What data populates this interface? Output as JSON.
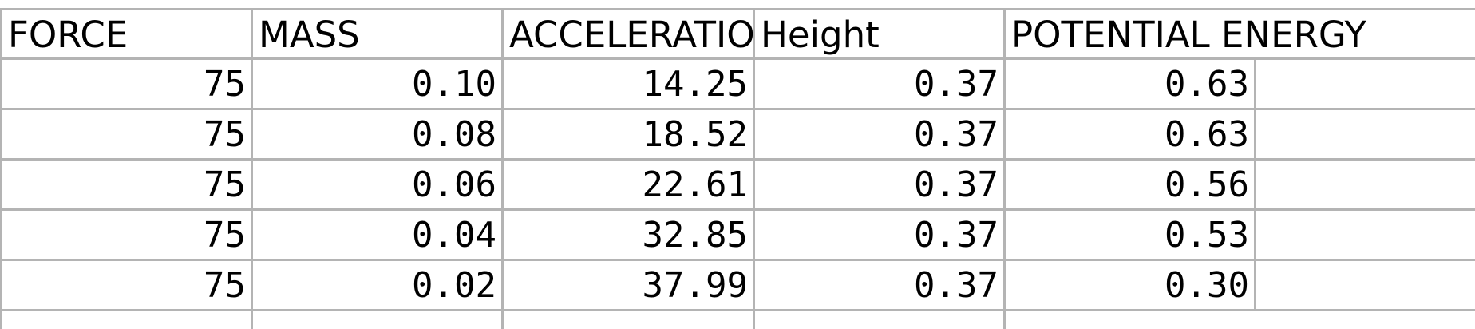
{
  "table": {
    "headers": [
      "FORCE",
      "MASS",
      "ACCELERATION",
      "Height",
      "POTENTIAL ENERGY"
    ],
    "rows": [
      [
        "75",
        "0.10",
        "14.25",
        "0.37",
        "0.63"
      ],
      [
        "75",
        "0.08",
        "18.52",
        "0.37",
        "0.63"
      ],
      [
        "75",
        "0.06",
        "22.61",
        "0.37",
        "0.56"
      ],
      [
        "75",
        "0.04",
        "32.85",
        "0.37",
        "0.53"
      ],
      [
        "75",
        "0.02",
        "37.99",
        "0.37",
        "0.30"
      ]
    ]
  },
  "colors": {
    "gridline": "#b4b4b4",
    "text": "#000000",
    "background": "#ffffff"
  }
}
